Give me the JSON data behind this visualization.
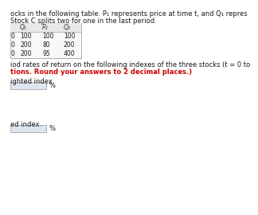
{
  "title_line1": "ocks in the following table. P₁ represents price at time t, and Q₁ repres",
  "title_line2": "Stock C splits two for one in the last period.",
  "col_headers": [
    "Q₁",
    "P₂",
    "Q₂"
  ],
  "row_labels": [
    "0",
    "0",
    "0"
  ],
  "row1": [
    "100",
    "100",
    "100"
  ],
  "row2": [
    "200",
    "80",
    "200"
  ],
  "row3": [
    "200",
    "95",
    "400"
  ],
  "body_line1": "iod rates of return on the following indexes of the three stocks (t = 0 to",
  "body_line2_red": "tions. Round your answers to 2 decimal places.)",
  "label1": "ighted index.",
  "label2": "ed index.",
  "bg_color": "#ffffff",
  "table_header_bg": "#e8e8e8",
  "table_row_bg": "#f8f8f8",
  "input_box_color": "#dce6f1",
  "border_color": "#b0b0b0",
  "text_color": "#1a1a1a",
  "red_color": "#cc0000",
  "header_text_color": "#333333"
}
